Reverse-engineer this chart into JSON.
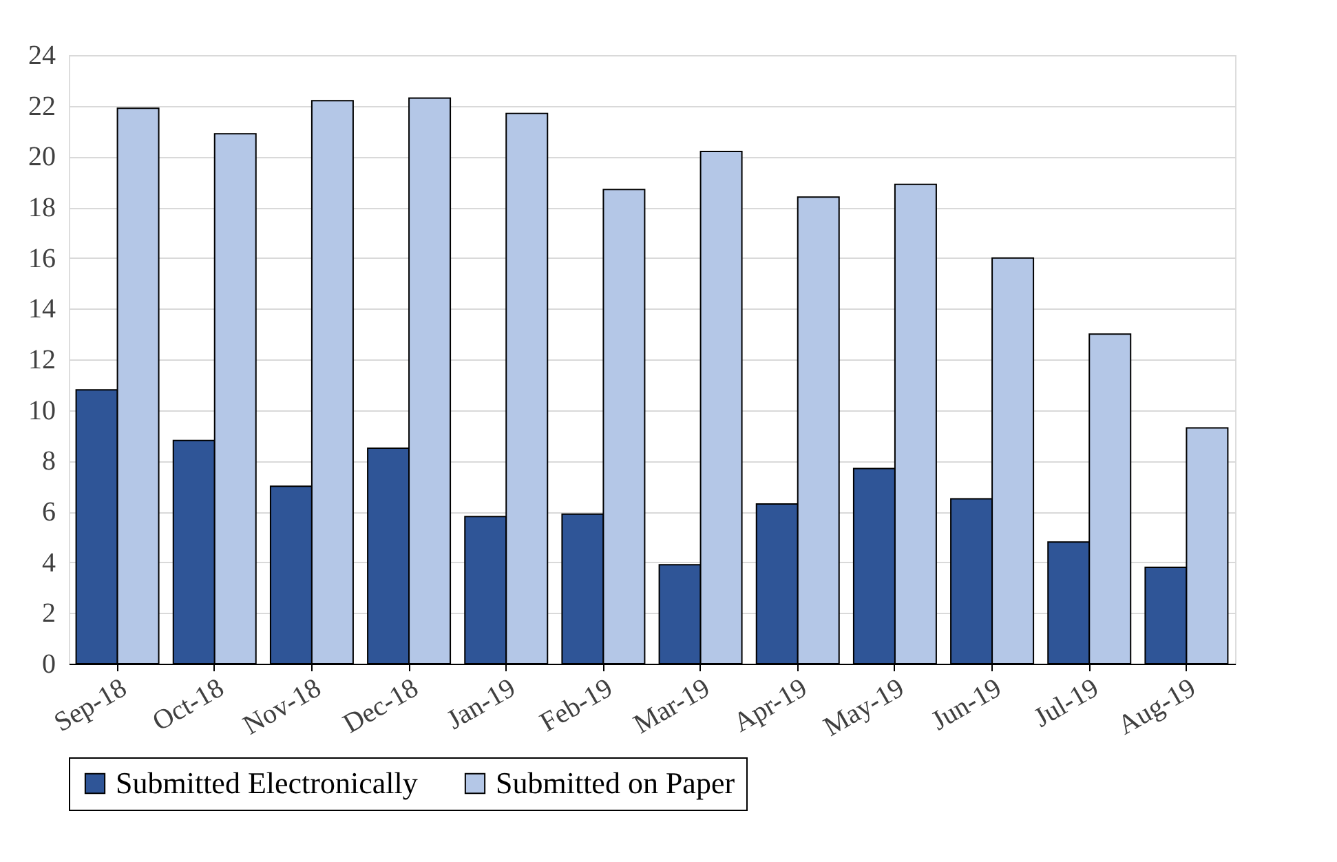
{
  "chart_data": {
    "type": "bar",
    "categories": [
      "Sep-18",
      "Oct-18",
      "Nov-18",
      "Dec-18",
      "Jan-19",
      "Feb-19",
      "Mar-19",
      "Apr-19",
      "May-19",
      "Jun-19",
      "Jul-19",
      "Aug-19"
    ],
    "series": [
      {
        "name": "Submitted Electronically",
        "color": "#2f5597",
        "values": [
          10.8,
          8.8,
          7.0,
          8.5,
          5.8,
          5.9,
          3.9,
          6.3,
          7.7,
          6.5,
          4.8,
          3.8
        ]
      },
      {
        "name": "Submitted on Paper",
        "color": "#b4c7e7",
        "values": [
          21.9,
          20.9,
          22.2,
          22.3,
          21.7,
          18.7,
          20.2,
          18.4,
          18.9,
          16.0,
          13.0,
          9.3
        ]
      }
    ],
    "ylim": [
      0,
      24
    ],
    "yticks": [
      0,
      2,
      4,
      6,
      8,
      10,
      12,
      14,
      16,
      18,
      20,
      22,
      24
    ],
    "grid": "y",
    "legend": "bottom"
  }
}
